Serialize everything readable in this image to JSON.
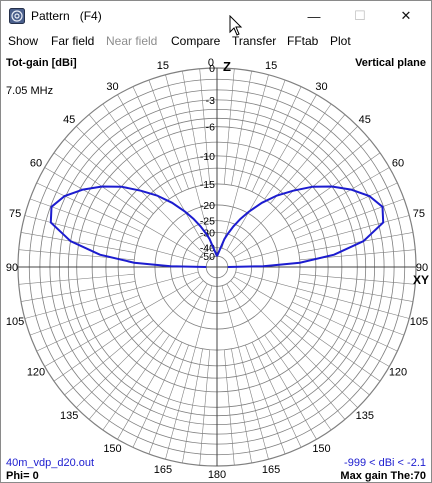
{
  "window": {
    "title": "Pattern   (F4)",
    "min_glyph": "—",
    "max_glyph": "☐",
    "close_glyph": "✕"
  },
  "menu": [
    "Show",
    "Far field",
    "Near field",
    "Compare",
    "Transfer",
    "FFtab",
    "Plot"
  ],
  "plot": {
    "top_left": "Tot-gain [dBi]",
    "top_right": "Vertical plane",
    "frequency": "7.05 MHz",
    "file": "40m_vdp_d20.out",
    "range": "-999 < dBi < -2.1",
    "phi": "Phi= 0",
    "max_gain": "Max gain The:70",
    "z_label": "Z",
    "xy_label": "XY",
    "angle_labels": [
      "0",
      "15",
      "30",
      "45",
      "60",
      "75",
      "90",
      "105",
      "120",
      "135",
      "150",
      "165",
      "180",
      "165",
      "150",
      "135",
      "120",
      "105",
      "90",
      "75",
      "60",
      "45",
      "30",
      "15"
    ],
    "gain_scale_labels": [
      "0",
      "-3",
      "-6",
      "-10",
      "-15",
      "-20",
      "-25",
      "-30",
      "-40",
      "-50"
    ]
  },
  "chart_data": {
    "type": "polar",
    "title": "Vertical plane",
    "series": [
      {
        "angle_deg": [
          15,
          18,
          22,
          26,
          30,
          35,
          40,
          45,
          50,
          55,
          60,
          65,
          70,
          75,
          80,
          84,
          87,
          89,
          90
        ],
        "gain_dbi": [
          -33,
          -30,
          -26,
          -22.5,
          -19.5,
          -16,
          -13,
          -10.5,
          -8,
          -6,
          -4.3,
          -2.9,
          -2.1,
          -2.5,
          -5,
          -9,
          -15,
          -25,
          -50
        ]
      }
    ],
    "symmetry": "mirrored about vertical axis",
    "colors": {
      "pattern": "#1c1ccf",
      "grid": "#808080"
    }
  }
}
